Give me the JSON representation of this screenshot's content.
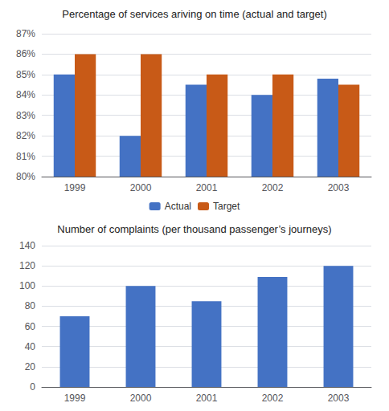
{
  "chart_data": [
    {
      "type": "bar",
      "title": "Percentage of services ariving on time (actual and target)",
      "categories": [
        "1999",
        "2000",
        "2001",
        "2002",
        "2003"
      ],
      "series": [
        {
          "name": "Actual",
          "color": "#4472c4",
          "values": [
            85,
            82,
            84.5,
            84,
            84.8
          ]
        },
        {
          "name": "Target",
          "color": "#c85a17",
          "values": [
            86,
            86,
            85,
            85,
            84.5
          ]
        }
      ],
      "ylim": [
        80,
        87
      ],
      "yticks": [
        {
          "value": 80,
          "label": "80%"
        },
        {
          "value": 81,
          "label": "81%"
        },
        {
          "value": 82,
          "label": "82%"
        },
        {
          "value": 83,
          "label": "83%"
        },
        {
          "value": 84,
          "label": "84%"
        },
        {
          "value": 85,
          "label": "85%"
        },
        {
          "value": 86,
          "label": "86%"
        },
        {
          "value": 87,
          "label": "87%"
        }
      ],
      "grid": true,
      "legend": "bottom"
    },
    {
      "type": "bar",
      "title": "Number of complaints (per thousand passenger’s journeys)",
      "categories": [
        "1999",
        "2000",
        "2001",
        "2002",
        "2003"
      ],
      "values": [
        70,
        100,
        85,
        109,
        120
      ],
      "color": "#4472c4",
      "ylim": [
        0,
        140
      ],
      "yticks": [
        0,
        20,
        40,
        60,
        80,
        100,
        120,
        140
      ],
      "grid": true
    }
  ]
}
